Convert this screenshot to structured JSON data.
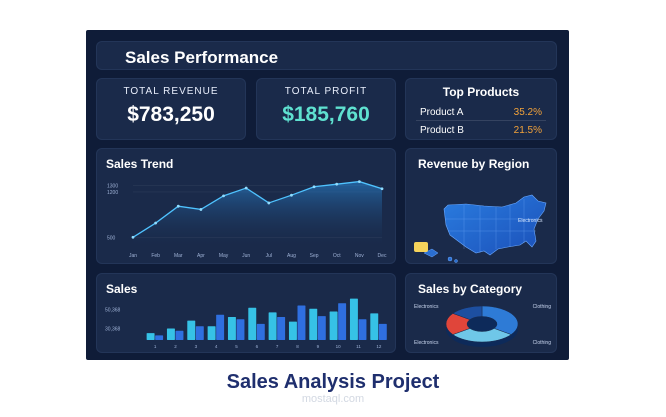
{
  "header": {
    "title": "Sales Performance"
  },
  "kpis": [
    {
      "label": "TOTAL REVENUE",
      "value": "$783,250"
    },
    {
      "label": "TOTAL PROFIT",
      "value": "$185,760"
    }
  ],
  "top_products": {
    "title": "Top Products",
    "items": [
      {
        "name": "Product A",
        "pct": "35.2%"
      },
      {
        "name": "Product B",
        "pct": "21.5%"
      }
    ]
  },
  "panels": {
    "trend": "Sales Trend",
    "region": "Revenue by Region",
    "sales": "Sales",
    "category": "Sales by Category"
  },
  "colors": {
    "background": "#0f1c38",
    "panel": "#1a2a4a",
    "accent_teal": "#5fe1d0",
    "accent_orange": "#f2a23a",
    "line": "#4fc3ff"
  },
  "chart_data": [
    {
      "type": "line",
      "title": "Sales Trend",
      "x": [
        "Jan",
        "Feb",
        "Mar",
        "Apr",
        "May",
        "Jun",
        "Jul",
        "Aug",
        "Sep",
        "Oct",
        "Nov",
        "Dec"
      ],
      "y_ticks": [
        "1300",
        "1200",
        "500"
      ],
      "values": [
        500,
        720,
        980,
        930,
        1140,
        1260,
        1030,
        1150,
        1280,
        1320,
        1360,
        1250
      ],
      "ylim": [
        350,
        1400
      ],
      "grid": true
    },
    {
      "type": "bar",
      "title": "Sales",
      "categories": [
        "1",
        "2",
        "3",
        "4",
        "5",
        "6",
        "7",
        "8",
        "9",
        "10",
        "11",
        "12"
      ],
      "y_ticks": [
        "50,368",
        "30,368"
      ],
      "series": [
        {
          "values": [
            15,
            25,
            42,
            30,
            50,
            70,
            60,
            40,
            68,
            62,
            90,
            58
          ]
        },
        {
          "values": [
            10,
            20,
            30,
            55,
            45,
            35,
            50,
            75,
            52,
            80,
            45,
            35
          ]
        }
      ],
      "ylim": [
        0,
        100
      ]
    },
    {
      "type": "pie",
      "title": "Sales by Category",
      "labels": [
        "Electronics",
        "Clothing",
        "Electronics",
        "Clothing"
      ],
      "values": [
        35,
        30,
        20,
        15
      ],
      "colors": [
        "#2e7bd6",
        "#6fc7e8",
        "#e0453a",
        "#1d4fa0"
      ]
    }
  ],
  "map": {
    "tooltip": "Electronics"
  },
  "caption": "Sales Analysis Project",
  "watermark": "mostaql.com"
}
